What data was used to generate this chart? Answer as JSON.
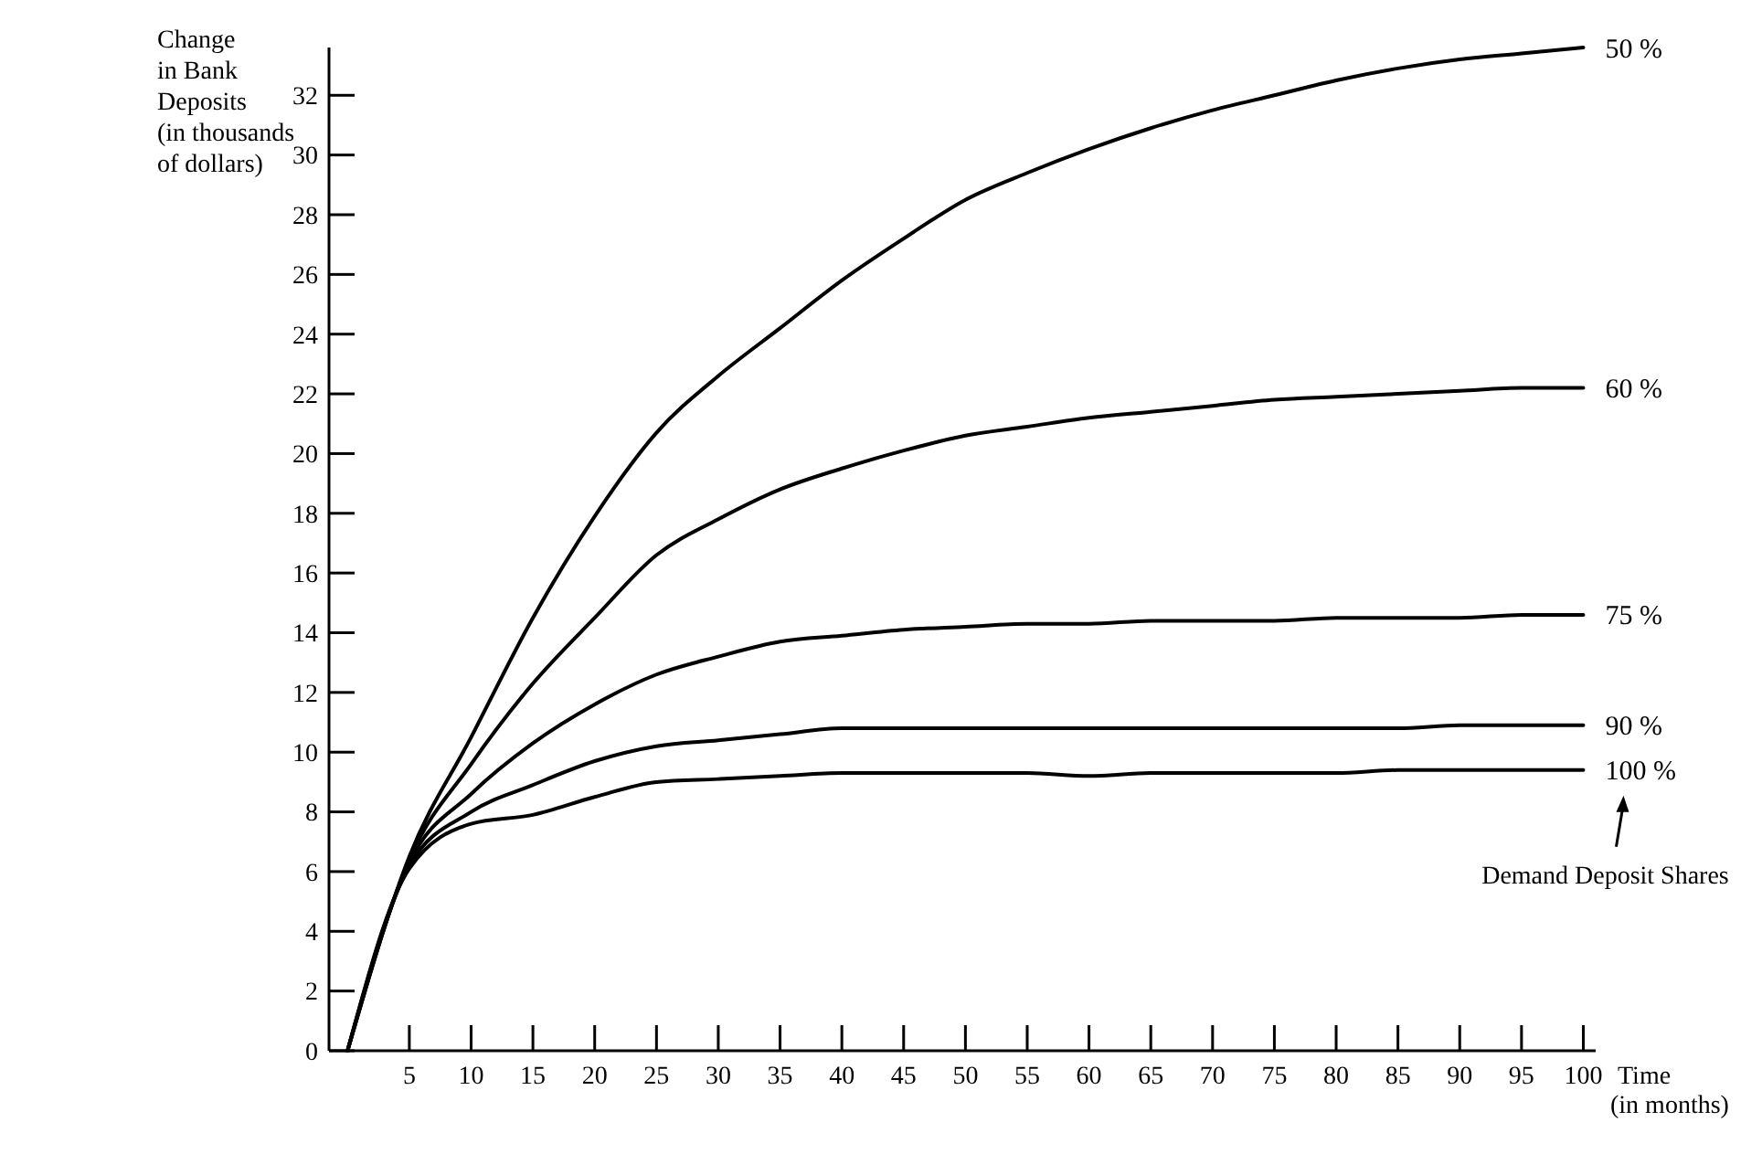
{
  "chart_data": {
    "type": "line",
    "ylabel": "Change\nin Bank\nDeposits\n(in thousands\nof dollars)",
    "xlabel": "Time\n(in months)",
    "x": [
      0,
      5,
      10,
      15,
      20,
      25,
      30,
      35,
      40,
      45,
      50,
      55,
      60,
      65,
      70,
      75,
      80,
      85,
      90,
      95,
      100
    ],
    "xlim": [
      -1.5,
      101
    ],
    "ylim": [
      0,
      33.6
    ],
    "xticks": [
      5,
      10,
      15,
      20,
      25,
      30,
      35,
      40,
      45,
      50,
      55,
      60,
      65,
      70,
      75,
      80,
      85,
      90,
      95,
      100
    ],
    "yticks": [
      0,
      2,
      4,
      6,
      8,
      10,
      12,
      14,
      16,
      18,
      20,
      22,
      24,
      26,
      28,
      30,
      32
    ],
    "grid": false,
    "legend": false,
    "marker": "none",
    "line_style": "solid",
    "series": [
      {
        "name": "50 %",
        "color": "#000000",
        "values": [
          0,
          6.5,
          10.5,
          14.5,
          17.9,
          20.7,
          22.6,
          24.2,
          25.8,
          27.2,
          28.5,
          29.4,
          30.2,
          30.9,
          31.5,
          32.0,
          32.5,
          32.9,
          33.2,
          33.4,
          33.6
        ]
      },
      {
        "name": "60 %",
        "color": "#000000",
        "values": [
          0,
          6.4,
          9.6,
          12.3,
          14.5,
          16.6,
          17.8,
          18.8,
          19.5,
          20.1,
          20.6,
          20.9,
          21.2,
          21.4,
          21.6,
          21.8,
          21.9,
          22.0,
          22.1,
          22.2,
          22.2
        ]
      },
      {
        "name": "75 %",
        "color": "#000000",
        "values": [
          0,
          6.3,
          8.6,
          10.3,
          11.6,
          12.6,
          13.2,
          13.7,
          13.9,
          14.1,
          14.2,
          14.3,
          14.3,
          14.4,
          14.4,
          14.4,
          14.5,
          14.5,
          14.5,
          14.6,
          14.6
        ]
      },
      {
        "name": "90 %",
        "color": "#000000",
        "values": [
          0,
          6.2,
          8.0,
          8.9,
          9.7,
          10.2,
          10.4,
          10.6,
          10.8,
          10.8,
          10.8,
          10.8,
          10.8,
          10.8,
          10.8,
          10.8,
          10.8,
          10.8,
          10.9,
          10.9,
          10.9
        ]
      },
      {
        "name": "100 %",
        "color": "#000000",
        "values": [
          0,
          6.1,
          7.6,
          7.9,
          8.5,
          9.0,
          9.1,
          9.2,
          9.3,
          9.3,
          9.3,
          9.3,
          9.2,
          9.3,
          9.3,
          9.3,
          9.3,
          9.4,
          9.4,
          9.4,
          9.4
        ]
      }
    ],
    "annotations": [
      "Demand Deposit Shares"
    ]
  }
}
